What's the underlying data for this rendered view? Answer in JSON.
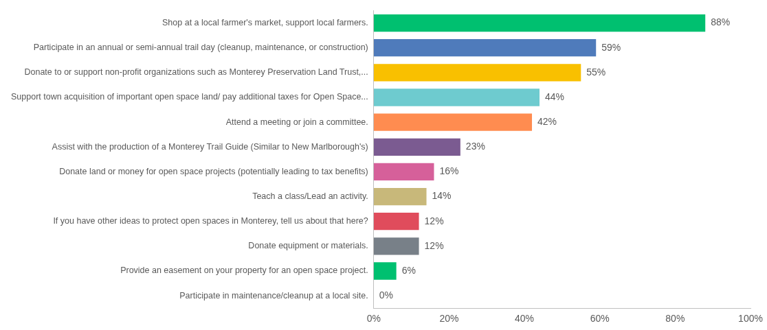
{
  "chart_data": {
    "type": "bar",
    "orientation": "horizontal",
    "categories": [
      "Shop at a local farmer's market, support local farmers.",
      "Participate in an annual or semi-annual trail day (cleanup, maintenance, or construction)",
      "Donate to or support non-profit organizations such as Monterey Preservation Land Trust,...",
      "Support town acquisition of important open space land/ pay additional taxes for Open Space...",
      "Attend a meeting or join a committee.",
      "Assist with the production of a Monterey Trail Guide (Similar to New Marlborough's)",
      "Donate land or money for open space projects (potentially leading to tax benefits)",
      "Teach a class/Lead an activity.",
      "If you have other ideas to protect open spaces in Monterey, tell us about that here?",
      "Donate equipment or materials.",
      "Provide an easement on your property for an open space project.",
      "Participate in maintenance/cleanup at a local site."
    ],
    "values": [
      88,
      59,
      55,
      44,
      42,
      23,
      16,
      14,
      12,
      12,
      6,
      0
    ],
    "value_labels": [
      "88%",
      "59%",
      "55%",
      "44%",
      "42%",
      "23%",
      "16%",
      "14%",
      "12%",
      "12%",
      "6%",
      "0%"
    ],
    "colors": [
      "#00c070",
      "#4f7bbb",
      "#f9c000",
      "#6ecbcf",
      "#ff8c50",
      "#7b5b91",
      "#d6609a",
      "#c8b87a",
      "#e04c5c",
      "#788088",
      "#00c070",
      "#a0a0a0"
    ],
    "xlim": [
      0,
      100
    ],
    "xticks": [
      {
        "value": 0,
        "label": "0%"
      },
      {
        "value": 20,
        "label": "20%"
      },
      {
        "value": 40,
        "label": "40%"
      },
      {
        "value": 60,
        "label": "60%"
      },
      {
        "value": 80,
        "label": "80%"
      },
      {
        "value": 100,
        "label": "100%"
      }
    ],
    "grid": false,
    "legend": false
  }
}
